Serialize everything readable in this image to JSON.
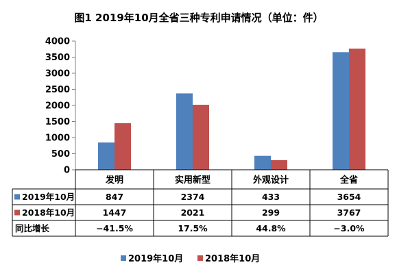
{
  "chart_data": {
    "type": "bar",
    "title": "图1  2019年10月全省三种专利申请情况（单位：件）",
    "categories": [
      "发明",
      "实用新型",
      "外观设计",
      "全省"
    ],
    "series": [
      {
        "name": "2019年10月",
        "values": [
          847,
          2374,
          433,
          3654
        ],
        "labels": [
          "847",
          "2374",
          "433",
          "3654"
        ],
        "color": "#4F81BD"
      },
      {
        "name": "2018年10月",
        "values": [
          1447,
          2021,
          299,
          3767
        ],
        "labels": [
          "1447",
          "2021",
          "299",
          "3767"
        ],
        "color": "#C0504D"
      }
    ],
    "yticks": [
      "0",
      "500",
      "1000",
      "1500",
      "2000",
      "2500",
      "3000",
      "3500",
      "4000"
    ],
    "ylim": [
      0,
      4000
    ],
    "grid": false,
    "legend_position": "bottom",
    "data_table": {
      "extra_row": {
        "label": "同比增长",
        "values": [
          "−41.5%",
          "17.5%",
          "44.8%",
          "−3.0%"
        ]
      }
    }
  }
}
